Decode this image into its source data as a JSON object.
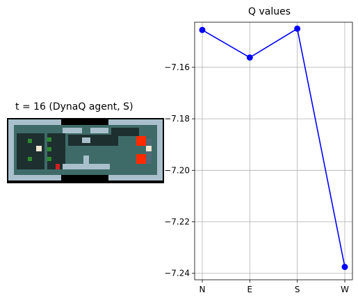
{
  "left_panel": {
    "title": "t = 16 (DynaQ agent, S)"
  },
  "chart_data": {
    "type": "line",
    "title": "Q values",
    "xlabel": "",
    "ylabel": "",
    "categories": [
      "N",
      "E",
      "S",
      "W"
    ],
    "series": [
      {
        "values": [
          -7.1455,
          -7.1562,
          -7.145,
          -7.2375
        ],
        "color": "#0000ff",
        "marker": "circle"
      }
    ],
    "ylim": [
      -7.2425,
      -7.1425
    ],
    "yticks": [
      -7.24,
      -7.22,
      -7.2,
      -7.18,
      -7.16
    ],
    "ytick_labels": [
      "−7.24",
      "−7.22",
      "−7.20",
      "−7.18",
      "−7.16"
    ],
    "grid": true,
    "legend": "none"
  },
  "colors": {
    "line": "#0000ff",
    "grid": "#b0b0b0",
    "wall_light": "#a9c0cc",
    "wall_dark": "#4f6a78",
    "floor_teal": "#3e6b68",
    "floor_dark": "#1e2f30",
    "lava": "#ff2a00",
    "plant": "#2e8b2e",
    "void": "#000000"
  },
  "icons": [
    "agent-icon",
    "monster-icon",
    "lava-icon",
    "plant-icon",
    "wall-icon"
  ]
}
